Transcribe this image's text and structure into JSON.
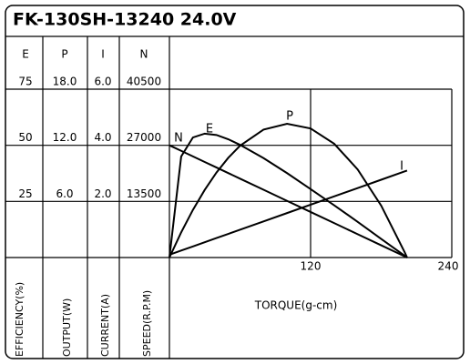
{
  "chart_data": {
    "type": "line",
    "title": "FK-130SH-13240   24.0V",
    "x_label": "TORQUE(g-cm)",
    "x": [
      0,
      10,
      20,
      30,
      40,
      50,
      60,
      80,
      100,
      120,
      140,
      160,
      180,
      200,
      202
    ],
    "xlim": [
      0,
      240
    ],
    "xticks": [
      120,
      240
    ],
    "grid": true,
    "color": "#000000",
    "series": [
      {
        "name": "E",
        "axis_label": "EFFICIENCY(%)",
        "ylim": [
          0,
          75
        ],
        "yticks": [
          25,
          50,
          75
        ],
        "values": [
          0,
          45,
          53.5,
          55.2,
          54.6,
          52.7,
          50.2,
          44.3,
          37.6,
          30.5,
          23.3,
          15.9,
          8.3,
          0.8,
          0
        ]
      },
      {
        "name": "P",
        "axis_label": "OUTPUT(W)",
        "ylim": [
          0,
          18
        ],
        "yticks": [
          {
            "value": 6,
            "label": "6.0"
          },
          {
            "value": 12,
            "label": "12.0"
          },
          {
            "value": 18,
            "label": "18.0"
          }
        ],
        "values": [
          0,
          2.69,
          5.1,
          7.23,
          9.09,
          10.66,
          11.95,
          13.68,
          14.3,
          13.8,
          12.17,
          9.42,
          5.55,
          0.56,
          0
        ]
      },
      {
        "name": "I",
        "axis_label": "CURRENT(A)",
        "ylim": [
          0,
          6
        ],
        "yticks": [
          {
            "value": 2,
            "label": "2.0"
          },
          {
            "value": 4,
            "label": "4.0"
          },
          {
            "value": 6,
            "label": "6.0"
          }
        ],
        "values": [
          0.1,
          0.249,
          0.397,
          0.546,
          0.694,
          0.843,
          0.991,
          1.288,
          1.585,
          1.882,
          2.179,
          2.476,
          2.773,
          3.07,
          3.1
        ]
      },
      {
        "name": "N",
        "axis_label": "SPEED(R.P.M)",
        "ylim": [
          0,
          40500
        ],
        "yticks": [
          13500,
          27000,
          40500
        ],
        "values": [
          27000,
          25663,
          24327,
          22990,
          21653,
          20317,
          18980,
          16307,
          13634,
          10960,
          8287,
          5614,
          2941,
          267,
          0
        ]
      }
    ]
  }
}
